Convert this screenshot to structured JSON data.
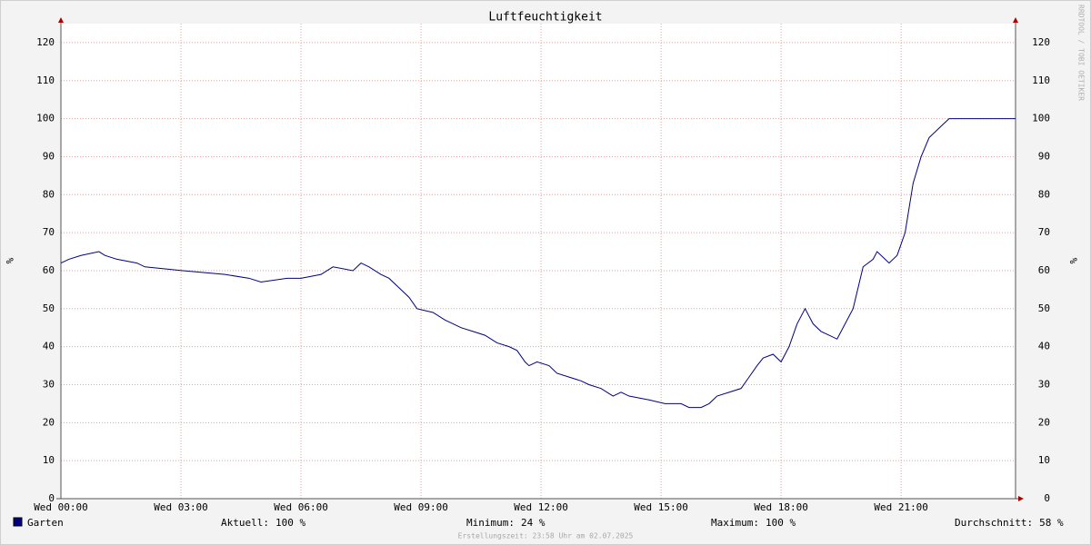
{
  "chart_data": {
    "type": "line",
    "title": "Luftfeuchtigkeit",
    "y_label": "%",
    "watermark": "RRDTOOL / TOBI OETIKER",
    "xlim": [
      0,
      23.86
    ],
    "xticks": [
      {
        "value": 0,
        "label": "Wed 00:00"
      },
      {
        "value": 3,
        "label": "Wed 03:00"
      },
      {
        "value": 6,
        "label": "Wed 06:00"
      },
      {
        "value": 9,
        "label": "Wed 09:00"
      },
      {
        "value": 12,
        "label": "Wed 12:00"
      },
      {
        "value": 15,
        "label": "Wed 15:00"
      },
      {
        "value": 18,
        "label": "Wed 18:00"
      },
      {
        "value": 21,
        "label": "Wed 21:00"
      }
    ],
    "ylim": [
      0,
      125
    ],
    "yticks": [
      0,
      10,
      20,
      30,
      40,
      50,
      60,
      70,
      80,
      90,
      100,
      110,
      120
    ],
    "grid": true,
    "x": [
      0,
      0.2,
      0.5,
      0.95,
      1.1,
      1.4,
      1.9,
      2.1,
      3.05,
      4.1,
      4.7,
      5.0,
      5.65,
      6.0,
      6.5,
      6.8,
      7.3,
      7.5,
      7.7,
      8.0,
      8.2,
      8.5,
      8.7,
      8.9,
      9.3,
      9.6,
      10.0,
      10.3,
      10.6,
      10.9,
      11.2,
      11.4,
      11.6,
      11.7,
      11.9,
      12.2,
      12.4,
      12.7,
      13.0,
      13.2,
      13.5,
      13.8,
      14.0,
      14.2,
      14.7,
      15.1,
      15.5,
      15.7,
      16.0,
      16.2,
      16.4,
      16.7,
      17.0,
      17.2,
      17.4,
      17.55,
      17.8,
      18.0,
      18.2,
      18.4,
      18.6,
      18.8,
      19.0,
      19.2,
      19.4,
      19.6,
      19.8,
      20.05,
      20.3,
      20.4,
      20.6,
      20.7,
      20.9,
      21.1,
      21.3,
      21.5,
      21.7,
      21.9,
      22.1,
      22.2,
      23.86
    ],
    "series": [
      {
        "name": "Garten",
        "color": "#000080",
        "values": [
          62,
          63,
          64,
          65,
          64,
          63,
          62,
          61,
          60,
          59,
          58,
          57,
          58,
          58,
          59,
          61,
          60,
          62,
          61,
          59,
          58,
          55,
          53,
          50,
          49,
          47,
          45,
          44,
          43,
          41,
          40,
          39,
          36,
          35,
          36,
          35,
          33,
          32,
          31,
          30,
          29,
          27,
          28,
          27,
          26,
          25,
          25,
          24,
          24,
          25,
          27,
          28,
          29,
          32,
          35,
          37,
          38,
          36,
          40,
          46,
          50,
          46,
          44,
          43,
          42,
          46,
          50,
          61,
          63,
          65,
          63,
          62,
          64,
          70,
          83,
          90,
          95,
          97,
          99,
          100,
          100
        ]
      }
    ],
    "stats": [
      {
        "label": "Aktuell:",
        "value": 100,
        "value_label": "100 %"
      },
      {
        "label": "Minimum:",
        "value": 24,
        "value_label": "24 %"
      },
      {
        "label": "Maximum:",
        "value": 100,
        "value_label": "100 %"
      },
      {
        "label": "Durchschnitt:",
        "value": 58,
        "value_label": "58 %"
      }
    ],
    "footer": "Erstellungszeit: 23:58 Uhr am 02.07.2025"
  }
}
